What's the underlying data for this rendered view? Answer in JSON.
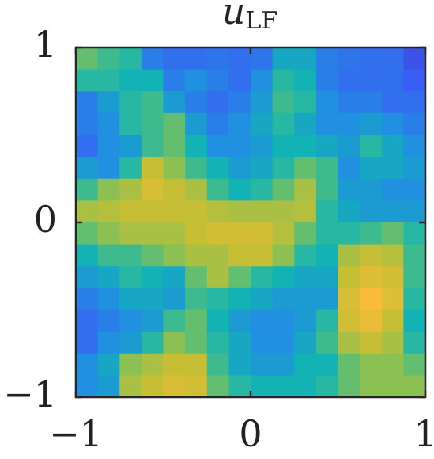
{
  "chart_data": {
    "type": "heatmap",
    "title": "u",
    "title_subscript": "LF",
    "colormap": "parula",
    "clim": [
      0,
      1
    ],
    "xlim": [
      -1,
      1
    ],
    "ylim": [
      -1,
      1
    ],
    "xticks": [
      {
        "value": -1,
        "label": "−1"
      },
      0,
      1
    ],
    "yticks": [
      {
        "value": -1,
        "label": "−1"
      },
      0,
      1
    ],
    "z": [
      [
        0.6,
        0.55,
        0.5,
        0.25,
        0.2,
        0.2,
        0.22,
        0.2,
        0.22,
        0.4,
        0.4,
        0.25,
        0.22,
        0.2,
        0.2,
        0.12
      ],
      [
        0.5,
        0.5,
        0.45,
        0.45,
        0.25,
        0.3,
        0.25,
        0.2,
        0.3,
        0.5,
        0.45,
        0.25,
        0.2,
        0.2,
        0.2,
        0.15
      ],
      [
        0.25,
        0.35,
        0.5,
        0.55,
        0.35,
        0.25,
        0.2,
        0.25,
        0.35,
        0.55,
        0.5,
        0.3,
        0.25,
        0.25,
        0.2,
        0.2
      ],
      [
        0.25,
        0.3,
        0.5,
        0.55,
        0.6,
        0.35,
        0.25,
        0.3,
        0.4,
        0.5,
        0.4,
        0.3,
        0.3,
        0.35,
        0.3,
        0.25
      ],
      [
        0.2,
        0.3,
        0.35,
        0.55,
        0.6,
        0.45,
        0.3,
        0.3,
        0.35,
        0.45,
        0.45,
        0.4,
        0.35,
        0.5,
        0.4,
        0.3
      ],
      [
        0.35,
        0.3,
        0.5,
        0.75,
        0.65,
        0.55,
        0.45,
        0.35,
        0.4,
        0.5,
        0.6,
        0.55,
        0.3,
        0.4,
        0.4,
        0.35
      ],
      [
        0.55,
        0.65,
        0.7,
        0.8,
        0.75,
        0.7,
        0.55,
        0.45,
        0.5,
        0.6,
        0.7,
        0.55,
        0.35,
        0.35,
        0.3,
        0.3
      ],
      [
        0.7,
        0.72,
        0.75,
        0.75,
        0.75,
        0.75,
        0.72,
        0.7,
        0.7,
        0.7,
        0.72,
        0.5,
        0.4,
        0.35,
        0.35,
        0.35
      ],
      [
        0.6,
        0.65,
        0.7,
        0.7,
        0.7,
        0.75,
        0.78,
        0.78,
        0.78,
        0.72,
        0.6,
        0.5,
        0.5,
        0.55,
        0.6,
        0.5
      ],
      [
        0.45,
        0.55,
        0.55,
        0.6,
        0.65,
        0.7,
        0.7,
        0.75,
        0.75,
        0.65,
        0.5,
        0.45,
        0.7,
        0.75,
        0.72,
        0.55
      ],
      [
        0.35,
        0.4,
        0.5,
        0.45,
        0.4,
        0.6,
        0.7,
        0.6,
        0.5,
        0.45,
        0.4,
        0.4,
        0.75,
        0.82,
        0.78,
        0.55
      ],
      [
        0.25,
        0.3,
        0.4,
        0.4,
        0.35,
        0.55,
        0.5,
        0.45,
        0.4,
        0.35,
        0.35,
        0.35,
        0.8,
        0.9,
        0.82,
        0.5
      ],
      [
        0.2,
        0.25,
        0.3,
        0.35,
        0.55,
        0.6,
        0.45,
        0.35,
        0.3,
        0.3,
        0.35,
        0.5,
        0.78,
        0.85,
        0.75,
        0.45
      ],
      [
        0.2,
        0.3,
        0.35,
        0.5,
        0.65,
        0.6,
        0.5,
        0.4,
        0.3,
        0.3,
        0.4,
        0.55,
        0.7,
        0.75,
        0.7,
        0.5
      ],
      [
        0.3,
        0.4,
        0.65,
        0.7,
        0.75,
        0.75,
        0.55,
        0.4,
        0.35,
        0.35,
        0.45,
        0.45,
        0.6,
        0.65,
        0.65,
        0.6
      ],
      [
        0.3,
        0.35,
        0.7,
        0.75,
        0.8,
        0.78,
        0.6,
        0.5,
        0.45,
        0.45,
        0.45,
        0.5,
        0.6,
        0.65,
        0.65,
        0.65
      ]
    ]
  }
}
